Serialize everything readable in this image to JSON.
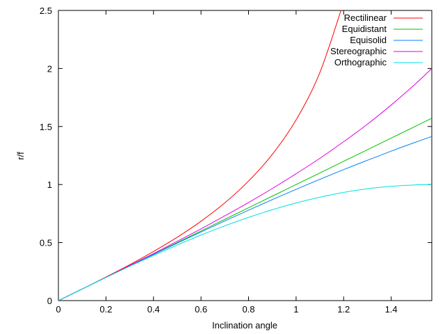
{
  "chart_data": {
    "type": "line",
    "title": "",
    "xlabel": "Inclination angle",
    "ylabel": "r/f",
    "xlim": [
      0,
      1.5708
    ],
    "ylim": [
      0,
      2.5
    ],
    "x_ticks": [
      0,
      0.2,
      0.4,
      0.6,
      0.8,
      1,
      1.2,
      1.4
    ],
    "y_ticks": [
      0,
      0.5,
      1,
      1.5,
      2,
      2.5
    ],
    "x_tick_labels": [
      "0",
      "0.2",
      "0.4",
      "0.6",
      "0.8",
      "1",
      "1.2",
      "1.4"
    ],
    "y_tick_labels": [
      "0",
      "0.5",
      "1",
      "1.5",
      "2",
      "2.5"
    ],
    "grid": false,
    "legend_position": "top-right",
    "x": [
      0,
      0.1,
      0.2,
      0.3,
      0.4,
      0.5,
      0.6,
      0.7,
      0.8,
      0.9,
      1.0,
      1.1,
      1.2,
      1.3,
      1.4,
      1.5,
      1.5708
    ],
    "series": [
      {
        "name": "Rectilinear",
        "color": "#ff0000",
        "values": [
          0,
          0.1,
          0.203,
          0.309,
          0.423,
          0.546,
          0.684,
          0.842,
          1.03,
          1.26,
          1.557,
          1.965,
          2.572,
          null,
          null,
          null,
          null
        ]
      },
      {
        "name": "Equidistant",
        "color": "#00c000",
        "values": [
          0,
          0.1,
          0.2,
          0.3,
          0.4,
          0.5,
          0.6,
          0.7,
          0.8,
          0.9,
          1.0,
          1.1,
          1.2,
          1.3,
          1.4,
          1.5,
          1.571
        ]
      },
      {
        "name": "Equisolid",
        "color": "#0080ff",
        "values": [
          0,
          0.1,
          0.2,
          0.299,
          0.397,
          0.495,
          0.591,
          0.686,
          0.779,
          0.87,
          0.959,
          1.045,
          1.129,
          1.209,
          1.288,
          1.363,
          1.414
        ]
      },
      {
        "name": "Stereographic",
        "color": "#e000e0",
        "values": [
          0,
          0.1,
          0.2,
          0.302,
          0.405,
          0.511,
          0.618,
          0.73,
          0.845,
          0.966,
          1.093,
          1.226,
          1.369,
          1.52,
          1.685,
          1.863,
          2.0
        ]
      },
      {
        "name": "Orthographic",
        "color": "#00e0e0",
        "values": [
          0,
          0.1,
          0.199,
          0.296,
          0.389,
          0.479,
          0.565,
          0.644,
          0.717,
          0.783,
          0.841,
          0.891,
          0.932,
          0.964,
          0.985,
          0.997,
          1.0
        ]
      }
    ]
  }
}
